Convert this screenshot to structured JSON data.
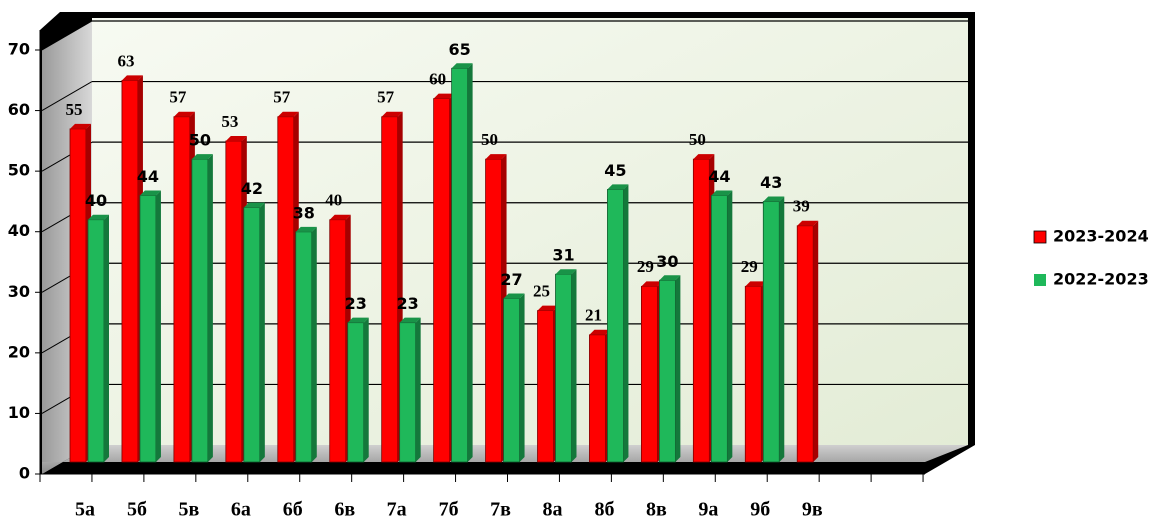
{
  "chart_data": {
    "type": "bar3d",
    "categories": [
      "5а",
      "5б",
      "5в",
      "6а",
      "6б",
      "6в",
      "7а",
      "7б",
      "7в",
      "8а",
      "8б",
      "8в",
      "9а",
      "9б",
      "9в",
      null,
      null,
      null
    ],
    "series": [
      {
        "name": "2023-2024",
        "color": "#ff0000",
        "values": [
          55,
          63,
          57,
          53,
          57,
          40,
          57,
          60,
          50,
          25,
          21,
          29,
          50,
          29,
          39,
          null,
          null,
          null
        ]
      },
      {
        "name": "2022-2023",
        "color": "#1fb85a",
        "values": [
          40,
          44,
          50,
          42,
          38,
          23,
          23,
          65,
          27,
          31,
          45,
          30,
          44,
          43,
          null,
          null,
          null,
          null
        ]
      }
    ],
    "ylim": [
      0,
      70
    ],
    "yticks": [
      0,
      10,
      20,
      30,
      40,
      50,
      60,
      70
    ],
    "grid": true,
    "legend": "right"
  }
}
